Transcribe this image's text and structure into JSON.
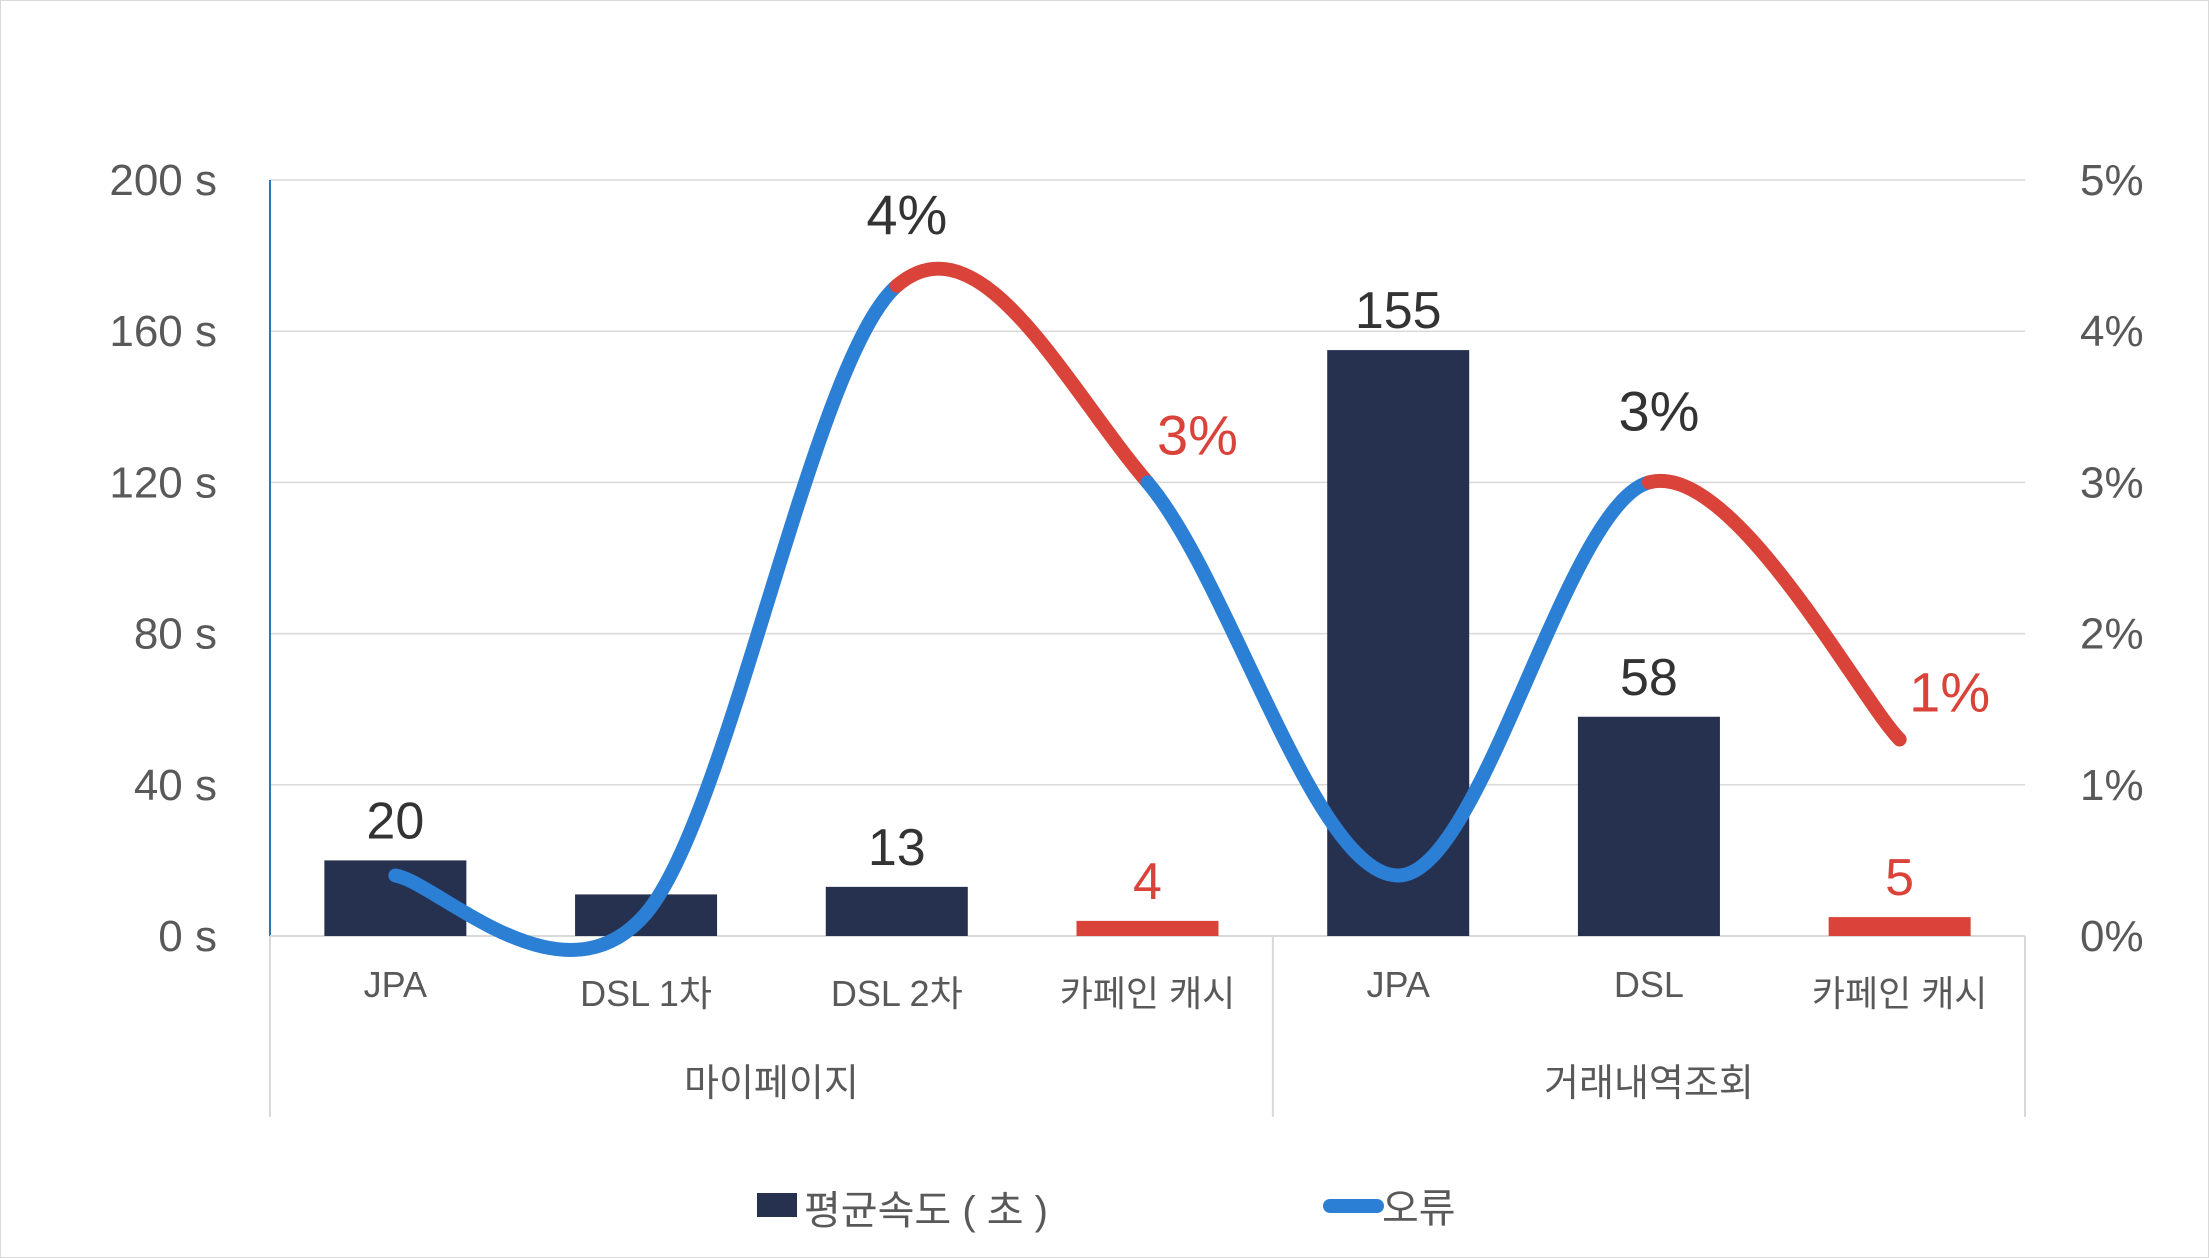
{
  "chart_data": {
    "type": "bar+line",
    "title": "",
    "groups": [
      {
        "label": "마이페이지",
        "categories": [
          "JPA",
          "DSL 1차",
          "DSL 2차",
          "카페인 캐시"
        ]
      },
      {
        "label": "거래내역조회",
        "categories": [
          "JPA",
          "DSL",
          "카페인 캐시"
        ]
      }
    ],
    "categories": [
      "JPA",
      "DSL 1차",
      "DSL 2차",
      "카페인 캐시",
      "JPA",
      "DSL",
      "카페인 캐시"
    ],
    "series": [
      {
        "name": "평균속도(초)",
        "type": "bar",
        "axis": "left",
        "values": [
          20,
          11,
          13,
          4,
          155,
          58,
          5
        ],
        "labels": [
          "20",
          "",
          "13",
          "4",
          "155",
          "58",
          "5"
        ],
        "label_colors": [
          "#333333",
          "#333333",
          "#333333",
          "#d9433a",
          "#333333",
          "#333333",
          "#d9433a"
        ],
        "bar_colors": [
          "#26304f",
          "#26304f",
          "#26304f",
          "#d9433a",
          "#26304f",
          "#26304f",
          "#d9433a"
        ]
      },
      {
        "name": "오류",
        "type": "line",
        "smooth": true,
        "axis": "right",
        "values": [
          0.4,
          0.15,
          4.3,
          3.0,
          0.4,
          3.0,
          1.3
        ],
        "labels": [
          "",
          "",
          "4%",
          "3%",
          "",
          "3%",
          "1%"
        ],
        "label_colors": [
          "#333333",
          "#333333",
          "#333333",
          "#d9433a",
          "#333333",
          "#333333",
          "#d9433a"
        ],
        "highlight_segments": [
          [
            2,
            3
          ],
          [
            5,
            6
          ]
        ]
      }
    ],
    "y_left": {
      "min": 0,
      "max": 200,
      "ticks": [
        "0 s",
        "40 s",
        "80 s",
        "120 s",
        "160 s",
        "200 s"
      ]
    },
    "y_right": {
      "min": 0,
      "max": 5,
      "ticks": [
        "0%",
        "1%",
        "2%",
        "3%",
        "4%",
        "5%"
      ]
    },
    "grid": true,
    "legend_position": "bottom",
    "legend": [
      {
        "label": "평균속도 ( 초 )",
        "color": "#26304f",
        "kind": "box"
      },
      {
        "label": "오류",
        "color": "#2b7fd4",
        "kind": "line"
      }
    ]
  },
  "colors": {
    "bar": "#26304f",
    "highlight": "#d9433a",
    "line": "#2b7fd4",
    "grid": "#d9d9d9",
    "axis_text": "#595959",
    "label_text": "#333333"
  }
}
